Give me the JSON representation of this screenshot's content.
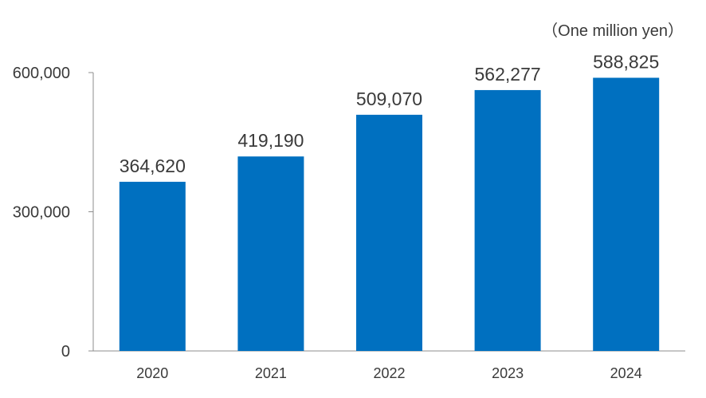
{
  "chart_data": {
    "type": "bar",
    "unit_label": "（One million yen）",
    "categories": [
      "2020",
      "2021",
      "2022",
      "2023",
      "2024"
    ],
    "values": [
      364620,
      419190,
      509070,
      562277,
      588825
    ],
    "value_labels": [
      "364,620",
      "419,190",
      "509,070",
      "562,277",
      "588,825"
    ],
    "ylim": [
      0,
      600000
    ],
    "yticks": [
      0,
      300000,
      600000
    ],
    "ytick_labels": [
      "0",
      "300,000",
      "600,000"
    ],
    "grid": false,
    "legend": "none",
    "bar_color": "#0070c0"
  }
}
